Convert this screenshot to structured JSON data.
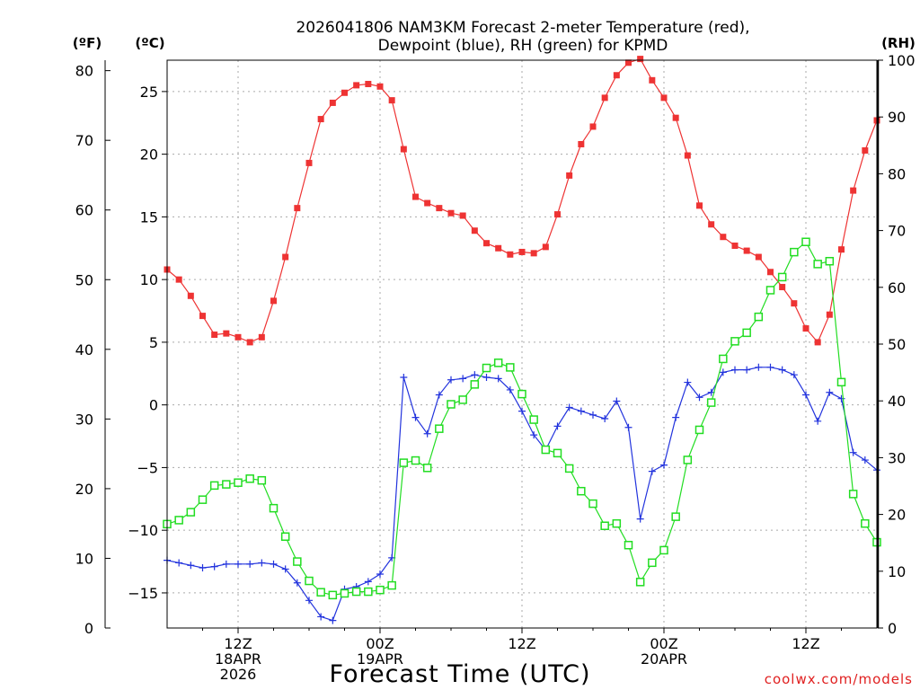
{
  "chart_data": {
    "type": "line",
    "title_line1": "2026041806 NAM3KM Forecast 2-meter Temperature (red),",
    "title_line2": "Dewpoint (blue), RH (green) for KPMD",
    "xlabel": "Forecast Time (UTC)",
    "credit": "coolwx.com/models",
    "units": {
      "fahrenheit": "(ºF)",
      "celsius": "(ºC)",
      "rh": "(RH)"
    },
    "x_unit": "forecast hour (hours after 2026041806)",
    "xlim": [
      0,
      60
    ],
    "ylim_celsius": [
      -17.8,
      27.5
    ],
    "ylim_fahrenheit": [
      0,
      81.5
    ],
    "ylim_rh": [
      0,
      100
    ],
    "yticks_celsius": [
      "25",
      "20",
      "15",
      "10",
      "5",
      "0",
      "−5",
      "−10",
      "−15"
    ],
    "yticks_fahrenheit": [
      "80",
      "70",
      "60",
      "50",
      "40",
      "30",
      "20",
      "10",
      "0"
    ],
    "yticks_rh": [
      "100",
      "90",
      "80",
      "70",
      "60",
      "50",
      "40",
      "30",
      "20",
      "10",
      "0"
    ],
    "x_tick_groups": [
      {
        "hour": 6,
        "lines": [
          "12Z",
          "18APR",
          "2026"
        ]
      },
      {
        "hour": 18,
        "lines": [
          "00Z",
          "19APR"
        ]
      },
      {
        "hour": 30,
        "lines": [
          "12Z"
        ]
      },
      {
        "hour": 42,
        "lines": [
          "00Z",
          "20APR"
        ]
      },
      {
        "hour": 54,
        "lines": [
          "12Z"
        ]
      }
    ],
    "colors": {
      "temperature": "#ee3333",
      "dewpoint": "#2233dd",
      "rh": "#22dd22"
    },
    "series": [
      {
        "name": "Temperature (°C)",
        "axis": "celsius",
        "color": "#ee3333",
        "marker": "filled-square",
        "x": [
          0,
          1,
          2,
          3,
          4,
          5,
          6,
          7,
          8,
          9,
          10,
          11,
          12,
          13,
          14,
          15,
          16,
          17,
          18,
          19,
          20,
          21,
          22,
          23,
          24,
          25,
          26,
          27,
          28,
          29,
          30,
          31,
          32,
          33,
          34,
          35,
          36,
          37,
          38,
          39,
          40,
          41,
          42,
          43,
          44,
          45,
          46,
          47,
          48,
          49,
          50,
          51,
          52,
          53,
          54,
          55,
          56,
          57,
          58,
          59,
          60
        ],
        "values": [
          10.8,
          10.0,
          8.7,
          7.1,
          5.6,
          5.7,
          5.4,
          5.0,
          5.4,
          8.3,
          11.8,
          15.7,
          19.3,
          22.8,
          24.1,
          24.9,
          25.5,
          25.6,
          25.4,
          24.3,
          20.4,
          16.6,
          16.1,
          15.7,
          15.3,
          15.1,
          13.9,
          12.9,
          12.5,
          12.0,
          12.2,
          12.1,
          12.6,
          15.2,
          18.3,
          20.8,
          22.2,
          24.5,
          26.3,
          27.3,
          27.6,
          25.9,
          24.5,
          22.9,
          19.9,
          15.9,
          14.4,
          13.4,
          12.7,
          12.3,
          11.8,
          10.6,
          9.4,
          8.1,
          6.1,
          5.0,
          7.2,
          12.4,
          17.1,
          20.3,
          22.7
        ]
      },
      {
        "name": "Dewpoint (°C)",
        "axis": "celsius",
        "color": "#2233dd",
        "marker": "plus",
        "x": [
          0,
          1,
          2,
          3,
          4,
          5,
          6,
          7,
          8,
          9,
          10,
          11,
          12,
          13,
          14,
          15,
          16,
          17,
          18,
          19,
          20,
          21,
          22,
          23,
          24,
          25,
          26,
          27,
          28,
          29,
          30,
          31,
          32,
          33,
          34,
          35,
          36,
          37,
          38,
          39,
          40,
          41,
          42,
          43,
          44,
          45,
          46,
          47,
          48,
          49,
          50,
          51,
          52,
          53,
          54,
          55,
          56,
          57,
          58,
          59,
          60
        ],
        "values": [
          -12.4,
          -12.6,
          -12.8,
          -13.0,
          -12.9,
          -12.7,
          -12.7,
          -12.7,
          -12.6,
          -12.7,
          -13.1,
          -14.2,
          -15.6,
          -16.9,
          -17.2,
          -14.7,
          -14.5,
          -14.1,
          -13.5,
          -12.2,
          2.2,
          -1.0,
          -2.3,
          0.8,
          2.0,
          2.1,
          2.4,
          2.2,
          2.1,
          1.2,
          -0.5,
          -2.4,
          -3.6,
          -1.7,
          -0.2,
          -0.5,
          -0.8,
          -1.1,
          0.3,
          -1.8,
          -9.1,
          -5.3,
          -4.8,
          -1.0,
          1.8,
          0.6,
          1.0,
          2.6,
          2.8,
          2.8,
          3.0,
          3.0,
          2.8,
          2.4,
          0.8,
          -1.3,
          1.0,
          0.5,
          -3.8,
          -4.4,
          -5.2
        ]
      },
      {
        "name": "RH (%)",
        "axis": "rh",
        "color": "#22dd22",
        "marker": "open-square",
        "x": [
          0,
          1,
          2,
          3,
          4,
          5,
          6,
          7,
          8,
          9,
          10,
          11,
          12,
          13,
          14,
          15,
          16,
          17,
          18,
          19,
          20,
          21,
          22,
          23,
          24,
          25,
          26,
          27,
          28,
          29,
          30,
          31,
          32,
          33,
          34,
          35,
          36,
          37,
          38,
          39,
          40,
          41,
          42,
          43,
          44,
          45,
          46,
          47,
          48,
          49,
          50,
          51,
          52,
          53,
          54,
          55,
          56,
          57,
          58,
          59,
          60
        ],
        "values": [
          18.3,
          19.0,
          20.4,
          22.6,
          25.1,
          25.3,
          25.6,
          26.3,
          26.0,
          21.1,
          16.1,
          11.7,
          8.3,
          6.3,
          5.8,
          6.1,
          6.4,
          6.4,
          6.7,
          7.5,
          29.1,
          29.5,
          28.2,
          35.1,
          39.4,
          40.2,
          42.9,
          45.8,
          46.7,
          45.9,
          41.2,
          36.7,
          31.4,
          30.8,
          28.1,
          24.1,
          21.9,
          18.0,
          18.4,
          14.6,
          8.1,
          11.5,
          13.7,
          19.6,
          29.6,
          34.9,
          39.7,
          47.4,
          50.5,
          52.0,
          54.8,
          59.5,
          61.8,
          66.2,
          68.0,
          64.1,
          64.6,
          43.3,
          23.6,
          18.4,
          15.1
        ]
      }
    ]
  }
}
